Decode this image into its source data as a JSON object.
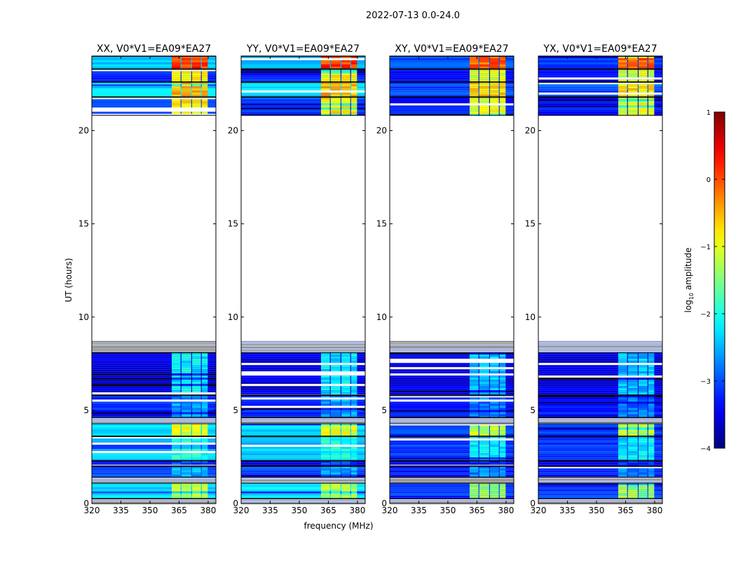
{
  "chart_data": {
    "type": "heatmap",
    "title": "2022-07-13 0.0-24.0",
    "xlabel": "frequency (MHz)",
    "ylabel": "UT (hours)",
    "xlim": [
      320,
      384
    ],
    "ylim": [
      0,
      24
    ],
    "xticks": [
      320,
      335,
      350,
      365,
      380
    ],
    "yticks": [
      0,
      5,
      10,
      15,
      20
    ],
    "panels": [
      {
        "title": "XX, V0*V1=EA09*EA27",
        "hand": "parallel"
      },
      {
        "title": "YY, V0*V1=EA09*EA27",
        "hand": "parallel"
      },
      {
        "title": "XY, V0*V1=EA09*EA27",
        "hand": "cross"
      },
      {
        "title": "YX, V0*V1=EA09*EA27",
        "hand": "cross"
      }
    ],
    "band_mhz": [
      361,
      380
    ],
    "band_gaps_mhz": [
      366,
      371.5,
      376.5
    ],
    "segments": [
      {
        "t": [
          0.0,
          0.25
        ],
        "kind": "flag"
      },
      {
        "t": [
          0.25,
          1.1
        ],
        "bg_parallel": -2.3,
        "bg_cross": -3.1,
        "band": -1.2
      },
      {
        "t": [
          1.1,
          1.4
        ],
        "kind": "flag"
      },
      {
        "t": [
          1.4,
          2.0
        ],
        "bg_parallel": -3.0,
        "bg_cross": -3.3,
        "band": -2.5
      },
      {
        "t": [
          2.0,
          2.3
        ],
        "bg_parallel": -3.4,
        "bg_cross": -3.5,
        "band": -3.0
      },
      {
        "t": [
          2.3,
          3.6
        ],
        "bg_parallel": -2.4,
        "bg_cross": -3.1,
        "band": -2.0
      },
      {
        "t": [
          3.6,
          4.3
        ],
        "bg_parallel": -2.3,
        "bg_cross": -3.1,
        "band": -1.0
      },
      {
        "t": [
          4.3,
          4.6
        ],
        "kind": "flag"
      },
      {
        "t": [
          4.6,
          5.8
        ],
        "bg_parallel": -3.2,
        "bg_cross": -3.3,
        "band": -2.6
      },
      {
        "t": [
          5.8,
          8.1
        ],
        "bg_parallel": -3.5,
        "bg_cross": -3.5,
        "band": -2.2
      },
      {
        "t": [
          8.1,
          8.7
        ],
        "kind": "flag"
      },
      {
        "t": [
          20.8,
          21.8
        ],
        "bg_parallel": -3.0,
        "bg_cross": -3.3,
        "band": -0.8
      },
      {
        "t": [
          21.8,
          22.6
        ],
        "bg_parallel": -2.3,
        "bg_cross": -3.0,
        "band": -0.5
      },
      {
        "t": [
          22.6,
          23.3
        ],
        "bg_parallel": -3.2,
        "bg_cross": -3.4,
        "band": -0.9
      },
      {
        "t": [
          23.3,
          24.0
        ],
        "bg_parallel": -2.4,
        "bg_cross": -3.0,
        "band": 0.1
      }
    ],
    "colorbar": {
      "label": "log10 amplitude",
      "label_main": "log",
      "label_sub": "10",
      "label_rest": " amplitude",
      "range": [
        -4,
        1
      ],
      "ticks": [
        "1",
        "0",
        "−1",
        "−2",
        "−3",
        "−4"
      ],
      "tick_values": [
        1,
        0,
        -1,
        -2,
        -3,
        -4
      ],
      "colormap": "jet"
    }
  }
}
